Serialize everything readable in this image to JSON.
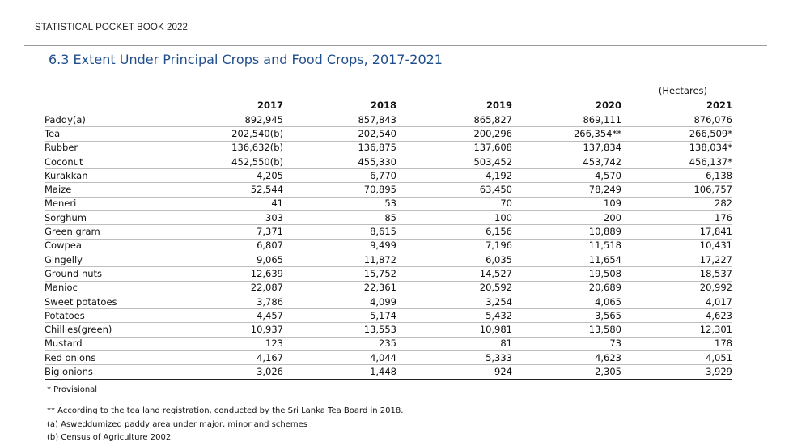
{
  "header": {
    "title": "STATISTICAL POCKET BOOK 2022"
  },
  "page": {
    "title": "6.3  Extent Under Principal Crops and Food Crops, 2017-2021"
  },
  "table": {
    "unit": "(Hectares)",
    "years": [
      "2017",
      "2018",
      "2019",
      "2020",
      "2021"
    ],
    "rows": [
      {
        "crop": "Paddy(a)",
        "values": [
          "892,945",
          "857,843",
          "865,827",
          "869,111",
          "876,076"
        ]
      },
      {
        "crop": "Tea",
        "values": [
          "202,540(b)",
          "202,540",
          "200,296",
          "266,354**",
          "266,509*"
        ]
      },
      {
        "crop": "Rubber",
        "values": [
          "136,632(b)",
          "136,875",
          "137,608",
          "137,834",
          "138,034*"
        ]
      },
      {
        "crop": "Coconut",
        "values": [
          "452,550(b)",
          "455,330",
          "503,452",
          "453,742",
          "456,137*"
        ]
      },
      {
        "crop": "Kurakkan",
        "values": [
          "4,205",
          "6,770",
          "4,192",
          "4,570",
          "6,138"
        ]
      },
      {
        "crop": "Maize",
        "values": [
          "52,544",
          "70,895",
          "63,450",
          "78,249",
          "106,757"
        ]
      },
      {
        "crop": "Meneri",
        "values": [
          "41",
          "53",
          "70",
          "109",
          "282"
        ]
      },
      {
        "crop": "Sorghum",
        "values": [
          "303",
          "85",
          "100",
          "200",
          "176"
        ]
      },
      {
        "crop": "Green gram",
        "values": [
          "7,371",
          "8,615",
          "6,156",
          "10,889",
          "17,841"
        ]
      },
      {
        "crop": "Cowpea",
        "values": [
          "6,807",
          "9,499",
          "7,196",
          "11,518",
          "10,431"
        ]
      },
      {
        "crop": "Gingelly",
        "values": [
          "9,065",
          "11,872",
          "6,035",
          "11,654",
          "17,227"
        ]
      },
      {
        "crop": "Ground nuts",
        "values": [
          "12,639",
          "15,752",
          "14,527",
          "19,508",
          "18,537"
        ]
      },
      {
        "crop": "Manioc",
        "values": [
          "22,087",
          "22,361",
          "20,592",
          "20,689",
          "20,992"
        ]
      },
      {
        "crop": "Sweet potatoes",
        "values": [
          "3,786",
          "4,099",
          "3,254",
          "4,065",
          "4,017"
        ]
      },
      {
        "crop": "Potatoes",
        "values": [
          "4,457",
          "5,174",
          "5,432",
          "3,565",
          "4,623"
        ]
      },
      {
        "crop": "Chillies(green)",
        "values": [
          "10,937",
          "13,553",
          "10,981",
          "13,580",
          "12,301"
        ]
      },
      {
        "crop": "Mustard",
        "values": [
          "123",
          "235",
          "81",
          "73",
          "178"
        ]
      },
      {
        "crop": "Red onions",
        "values": [
          "4,167",
          "4,044",
          "5,333",
          "4,623",
          "4,051"
        ]
      },
      {
        "crop": "Big onions",
        "values": [
          "3,026",
          "1,448",
          "924",
          "2,305",
          "3,929"
        ]
      }
    ]
  },
  "notes": {
    "provisional": "* Provisional",
    "tea_board": "** According to the tea land registration, conducted by the Sri Lanka Tea Board in 2018.",
    "note_a": "(a)  Asweddumized paddy area under major, minor and schemes",
    "note_b": "(b) Census of Agriculture 2002"
  }
}
